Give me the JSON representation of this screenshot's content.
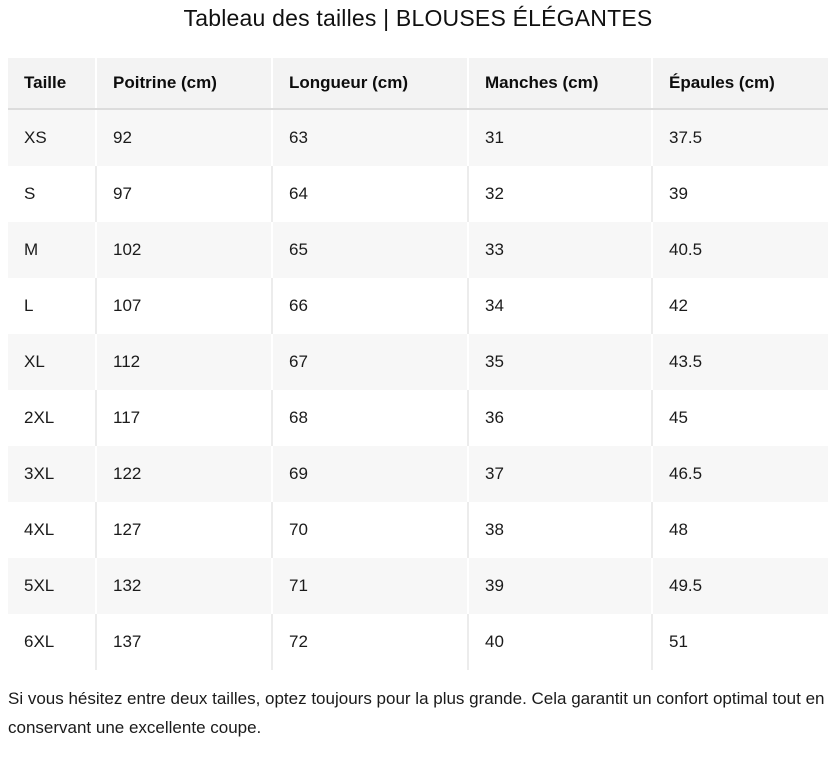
{
  "page": {
    "title": "Tableau des tailles | BLOUSES ÉLÉGANTES",
    "note": "Si vous hésitez entre deux tailles, optez toujours pour la plus grande. Cela garantit un confort optimal tout en conservant une excellente coupe."
  },
  "table": {
    "headers": [
      "Taille",
      "Poitrine (cm)",
      "Longueur (cm)",
      "Manches (cm)",
      "Épaules (cm)"
    ],
    "rows": [
      [
        "XS",
        "92",
        "63",
        "31",
        "37.5"
      ],
      [
        "S",
        "97",
        "64",
        "32",
        "39"
      ],
      [
        "M",
        "102",
        "65",
        "33",
        "40.5"
      ],
      [
        "L",
        "107",
        "66",
        "34",
        "42"
      ],
      [
        "XL",
        "112",
        "67",
        "35",
        "43.5"
      ],
      [
        "2XL",
        "117",
        "68",
        "36",
        "45"
      ],
      [
        "3XL",
        "122",
        "69",
        "37",
        "46.5"
      ],
      [
        "4XL",
        "127",
        "70",
        "38",
        "48"
      ],
      [
        "5XL",
        "132",
        "71",
        "39",
        "49.5"
      ],
      [
        "6XL",
        "137",
        "72",
        "40",
        "51"
      ]
    ]
  },
  "colors": {
    "header_bg": "#f3f3f3",
    "row_alt_bg": "#f7f7f7",
    "row_bg": "#ffffff",
    "header_border": "#dcdcdc",
    "cell_divider": "#ececec",
    "text": "#1b1b1b"
  }
}
